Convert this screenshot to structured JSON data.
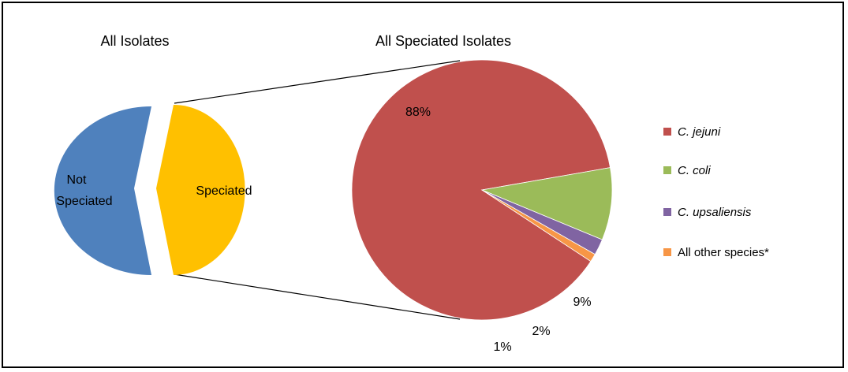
{
  "chart_data": [
    {
      "type": "pie",
      "title": "All Isolates",
      "slices": [
        {
          "label": "Not Speciated",
          "label_lines": [
            "Not",
            "Speciated"
          ],
          "value": 50,
          "color": "#4f81bd"
        },
        {
          "label": "Speciated",
          "value": 50,
          "color": "#ffc000",
          "exploded": true
        }
      ]
    },
    {
      "type": "pie",
      "title": "All Speciated Isolates",
      "slices": [
        {
          "label": "C. jejuni",
          "value": 88,
          "display": "88%",
          "color": "#c0504d"
        },
        {
          "label": "C. coli",
          "value": 9,
          "display": "9%",
          "color": "#9bbb59"
        },
        {
          "label": "C. upsaliensis",
          "value": 2,
          "display": "2%",
          "color": "#8064a2"
        },
        {
          "label": "All other species*",
          "value": 1,
          "display": "1%",
          "color": "#f79646"
        }
      ],
      "legend": {
        "placement": "right",
        "entries": [
          "C. jejuni",
          "C. coli",
          "C. upsaliensis",
          "All other species*"
        ]
      }
    }
  ]
}
